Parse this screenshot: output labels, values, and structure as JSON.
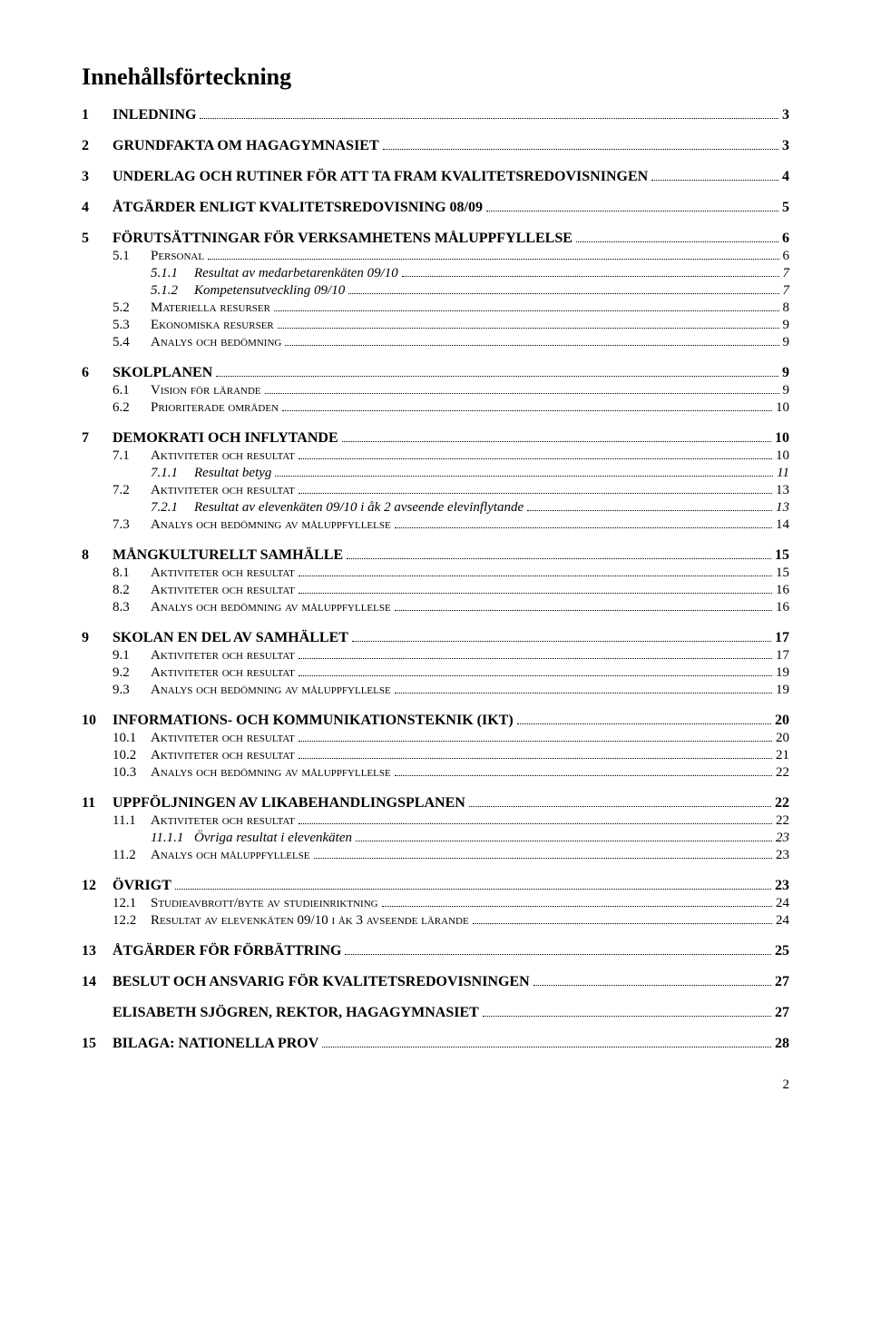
{
  "heading": "Innehållsförteckning",
  "footer_page": "2",
  "toc": [
    {
      "level": 1,
      "num": "1",
      "title": "INLEDNING",
      "page": "3"
    },
    {
      "level": 1,
      "num": "2",
      "title": "GRUNDFAKTA OM HAGAGYMNASIET",
      "page": "3"
    },
    {
      "level": 1,
      "num": "3",
      "title": "UNDERLAG OCH RUTINER FÖR ATT TA FRAM KVALITETSREDOVISNINGEN",
      "page": "4"
    },
    {
      "level": 1,
      "num": "4",
      "title": "ÅTGÄRDER ENLIGT KVALITETSREDOVISNING 08/09",
      "page": "5"
    },
    {
      "level": 1,
      "num": "5",
      "title": "FÖRUTSÄTTNINGAR FÖR VERKSAMHETENS MÅLUPPFYLLELSE",
      "page": "6"
    },
    {
      "level": 2,
      "num": "5.1",
      "title": "Personal",
      "page": "6"
    },
    {
      "level": 3,
      "num": "5.1.1",
      "title": "Resultat av medarbetarenkäten 09/10",
      "page": "7"
    },
    {
      "level": 3,
      "num": "5.1.2",
      "title": "Kompetensutveckling 09/10",
      "page": "7"
    },
    {
      "level": 2,
      "num": "5.2",
      "title": "Materiella resurser",
      "page": "8"
    },
    {
      "level": 2,
      "num": "5.3",
      "title": "Ekonomiska resurser",
      "page": "9"
    },
    {
      "level": 2,
      "num": "5.4",
      "title": "Analys och bedömning",
      "page": "9"
    },
    {
      "level": 1,
      "num": "6",
      "title": "SKOLPLANEN",
      "page": "9"
    },
    {
      "level": 2,
      "num": "6.1",
      "title": "Vision för lärande",
      "page": "9"
    },
    {
      "level": 2,
      "num": "6.2",
      "title": "Prioriterade områden",
      "page": "10"
    },
    {
      "level": 1,
      "num": "7",
      "title": "DEMOKRATI OCH INFLYTANDE",
      "page": "10"
    },
    {
      "level": 2,
      "num": "7.1",
      "title": "Aktiviteter och resultat",
      "page": "10"
    },
    {
      "level": 3,
      "num": "7.1.1",
      "title": "Resultat betyg",
      "page": "11"
    },
    {
      "level": 2,
      "num": "7.2",
      "title": "Aktiviteter och resultat",
      "page": "13"
    },
    {
      "level": 3,
      "num": "7.2.1",
      "title": "Resultat av elevenkäten 09/10 i åk 2 avseende elevinflytande",
      "page": "13"
    },
    {
      "level": 2,
      "num": "7.3",
      "title": "Analys och bedömning av måluppfyllelse",
      "page": "14"
    },
    {
      "level": 1,
      "num": "8",
      "title": "MÅNGKULTURELLT SAMHÄLLE",
      "page": "15"
    },
    {
      "level": 2,
      "num": "8.1",
      "title": "Aktiviteter och resultat",
      "page": "15"
    },
    {
      "level": 2,
      "num": "8.2",
      "title": "Aktiviteter och resultat",
      "page": "16"
    },
    {
      "level": 2,
      "num": "8.3",
      "title": "Analys och bedömning av måluppfyllelse",
      "page": "16"
    },
    {
      "level": 1,
      "num": "9",
      "title": "SKOLAN EN DEL AV SAMHÄLLET",
      "page": "17"
    },
    {
      "level": 2,
      "num": "9.1",
      "title": "Aktiviteter och resultat",
      "page": "17"
    },
    {
      "level": 2,
      "num": "9.2",
      "title": "Aktiviteter och resultat",
      "page": "19"
    },
    {
      "level": 2,
      "num": "9.3",
      "title": "Analys och bedömning av måluppfyllelse",
      "page": "19"
    },
    {
      "level": 1,
      "num": "10",
      "title": "INFORMATIONS- OCH KOMMUNIKATIONSTEKNIK (IKT)",
      "page": "20"
    },
    {
      "level": 2,
      "num": "10.1",
      "title": "Aktiviteter och resultat",
      "page": "20"
    },
    {
      "level": 2,
      "num": "10.2",
      "title": "Aktiviteter och resultat",
      "page": "21"
    },
    {
      "level": 2,
      "num": "10.3",
      "title": "Analys och bedömning av måluppfyllelse",
      "page": "22"
    },
    {
      "level": 1,
      "num": "11",
      "title": "UPPFÖLJNINGEN AV LIKABEHANDLINGSPLANEN",
      "page": "22"
    },
    {
      "level": 2,
      "num": "11.1",
      "title": "Aktiviteter och resultat",
      "page": "22"
    },
    {
      "level": 3,
      "num": "11.1.1",
      "title": "Övriga resultat i elevenkäten",
      "page": "23"
    },
    {
      "level": 2,
      "num": "11.2",
      "title": "Analys och måluppfyllelse",
      "page": "23"
    },
    {
      "level": 1,
      "num": "12",
      "title": "ÖVRIGT",
      "page": "23"
    },
    {
      "level": 2,
      "num": "12.1",
      "title": "Studieavbrott/byte av studieinriktning",
      "page": "24"
    },
    {
      "level": 2,
      "num": "12.2",
      "title": "Resultat av elevenkäten 09/10 i åk 3 avseende lärande",
      "page": "24"
    },
    {
      "level": 1,
      "num": "13",
      "title": "ÅTGÄRDER FÖR FÖRBÄTTRING",
      "page": "25"
    },
    {
      "level": 1,
      "num": "14",
      "title": "BESLUT OCH ANSVARIG FÖR KVALITETSREDOVISNINGEN",
      "page": "27"
    },
    {
      "level": 1,
      "num": "",
      "title": "ELISABETH SJÖGREN, REKTOR, HAGAGYMNASIET",
      "page": "27"
    },
    {
      "level": 1,
      "num": "15",
      "title": "BILAGA: NATIONELLA PROV",
      "page": "28"
    }
  ]
}
